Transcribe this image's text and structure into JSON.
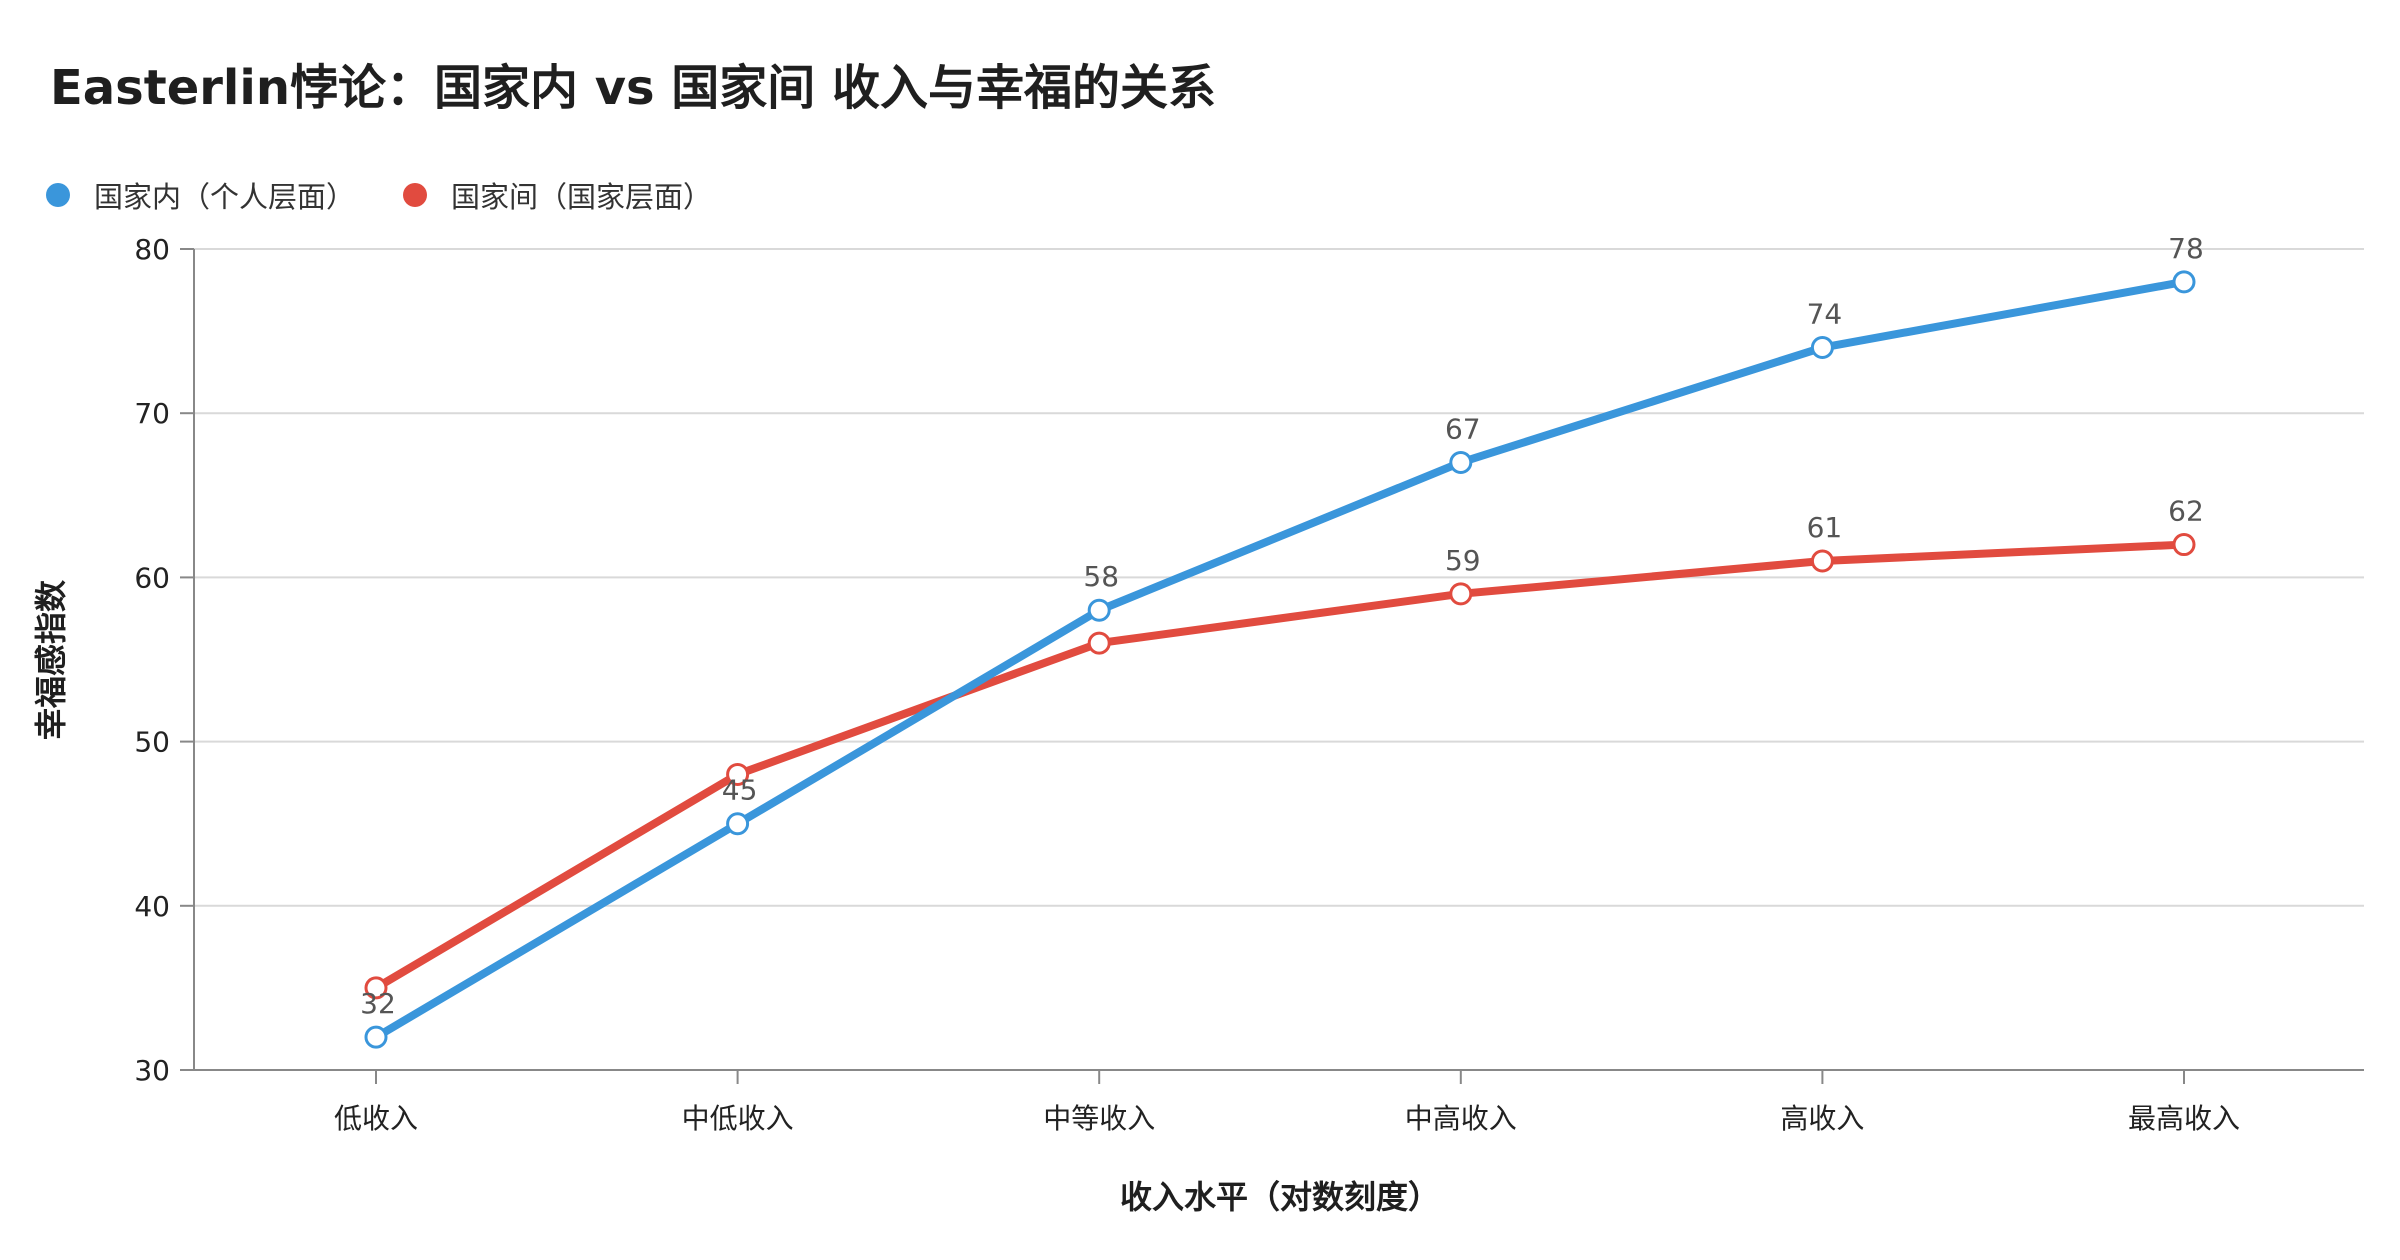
{
  "title": "Easterlin悖论：国家内 vs 国家间 收入与幸福的关系",
  "colors": {
    "within": "#3a96db",
    "between": "#e14b3f",
    "grid": "#d9d9d9",
    "axis": "#888888"
  },
  "chart_data": {
    "type": "line",
    "title": "Easterlin悖论：国家内 vs 国家间 收入与幸福的关系",
    "xlabel": "收入水平（对数刻度）",
    "ylabel": "幸福感指数",
    "categories": [
      "低收入",
      "中低收入",
      "中等收入",
      "中高收入",
      "高收入",
      "最高收入"
    ],
    "ylim": [
      30,
      80
    ],
    "yticks": [
      30,
      40,
      50,
      60,
      70,
      80
    ],
    "grid": true,
    "legend_position": "top-left",
    "series": [
      {
        "name": "国家内（个人层面）",
        "color": "#3a96db",
        "values": [
          32,
          45,
          58,
          67,
          74,
          78
        ],
        "labeled": true
      },
      {
        "name": "国家间（国家层面）",
        "color": "#e14b3f",
        "values": [
          35,
          48,
          56,
          59,
          61,
          62
        ],
        "labeled": false
      }
    ],
    "between_labels": [
      "",
      "",
      "",
      "59",
      "61",
      "62"
    ],
    "within_labels": [
      "32",
      "45",
      "58",
      "67",
      "74",
      "78"
    ]
  }
}
